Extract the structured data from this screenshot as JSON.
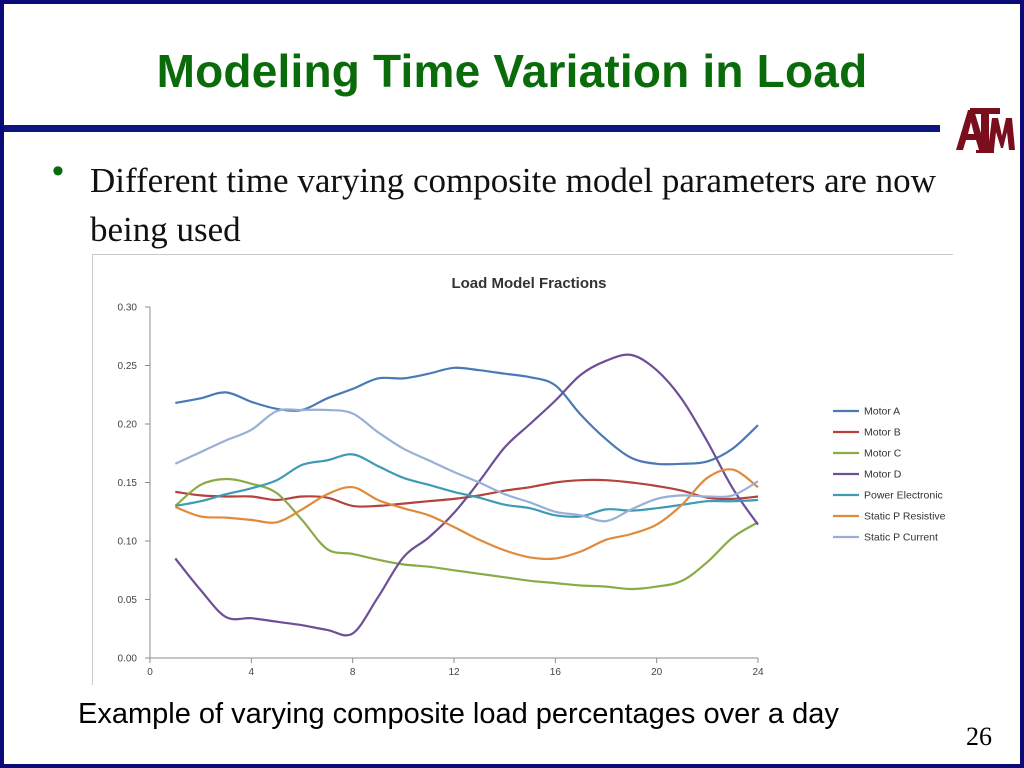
{
  "slide": {
    "title": "Modeling Time Variation in Load",
    "bullet": "Different time varying composite model parameters are now being used",
    "caption": "Example of varying composite load percentages over a day",
    "page_number": "26",
    "logo_text": "ATM",
    "colors": {
      "title": "#0a6b0a",
      "rule": "#0d1580",
      "border": "#0a0a7a",
      "logo": "#7a0e1d"
    }
  },
  "chart_data": {
    "type": "line",
    "title": "Load Model Fractions",
    "xlabel": "",
    "ylabel": "",
    "xlim": [
      0,
      24
    ],
    "ylim": [
      0,
      0.3
    ],
    "x_ticks": [
      0,
      4,
      8,
      12,
      16,
      20,
      24
    ],
    "y_ticks": [
      0.0,
      0.05,
      0.1,
      0.15,
      0.2,
      0.25,
      0.3
    ],
    "grid": false,
    "legend_position": "right",
    "x": [
      1,
      2,
      3,
      4,
      5,
      6,
      7,
      8,
      9,
      10,
      11,
      12,
      13,
      14,
      15,
      16,
      17,
      18,
      19,
      20,
      21,
      22,
      23,
      24
    ],
    "series": [
      {
        "name": "Motor A",
        "color": "#4a7ab5",
        "values": [
          0.218,
          0.222,
          0.227,
          0.219,
          0.213,
          0.212,
          0.222,
          0.23,
          0.239,
          0.239,
          0.243,
          0.248,
          0.246,
          0.243,
          0.24,
          0.233,
          0.208,
          0.187,
          0.171,
          0.166,
          0.166,
          0.168,
          0.179,
          0.199
        ]
      },
      {
        "name": "Motor B",
        "color": "#b5423d",
        "values": [
          0.142,
          0.139,
          0.138,
          0.138,
          0.135,
          0.138,
          0.137,
          0.13,
          0.13,
          0.132,
          0.134,
          0.136,
          0.139,
          0.143,
          0.146,
          0.15,
          0.152,
          0.152,
          0.15,
          0.147,
          0.143,
          0.137,
          0.136,
          0.138
        ]
      },
      {
        "name": "Motor C",
        "color": "#8aac46",
        "values": [
          0.13,
          0.148,
          0.153,
          0.149,
          0.141,
          0.118,
          0.093,
          0.089,
          0.084,
          0.08,
          0.078,
          0.075,
          0.072,
          0.069,
          0.066,
          0.064,
          0.062,
          0.061,
          0.059,
          0.061,
          0.066,
          0.082,
          0.103,
          0.116
        ]
      },
      {
        "name": "Motor D",
        "color": "#6e4f97",
        "values": [
          0.085,
          0.058,
          0.035,
          0.034,
          0.031,
          0.028,
          0.024,
          0.021,
          0.052,
          0.086,
          0.103,
          0.124,
          0.151,
          0.18,
          0.2,
          0.22,
          0.242,
          0.254,
          0.259,
          0.246,
          0.221,
          0.185,
          0.145,
          0.114
        ]
      },
      {
        "name": "Power Electronic",
        "color": "#3e9bb3",
        "values": [
          0.13,
          0.134,
          0.14,
          0.145,
          0.152,
          0.165,
          0.169,
          0.174,
          0.164,
          0.154,
          0.148,
          0.142,
          0.137,
          0.131,
          0.128,
          0.122,
          0.121,
          0.127,
          0.126,
          0.128,
          0.131,
          0.134,
          0.134,
          0.135
        ]
      },
      {
        "name": "Static P Resistive",
        "color": "#e08a3c",
        "values": [
          0.129,
          0.121,
          0.12,
          0.118,
          0.116,
          0.127,
          0.14,
          0.146,
          0.135,
          0.128,
          0.122,
          0.112,
          0.101,
          0.092,
          0.086,
          0.085,
          0.091,
          0.101,
          0.106,
          0.114,
          0.131,
          0.154,
          0.161,
          0.146
        ]
      },
      {
        "name": "Static P Current",
        "color": "#98b0d6",
        "values": [
          0.166,
          0.176,
          0.186,
          0.195,
          0.211,
          0.212,
          0.212,
          0.209,
          0.193,
          0.179,
          0.169,
          0.159,
          0.15,
          0.14,
          0.133,
          0.125,
          0.122,
          0.117,
          0.127,
          0.136,
          0.139,
          0.138,
          0.139,
          0.151
        ]
      }
    ]
  }
}
